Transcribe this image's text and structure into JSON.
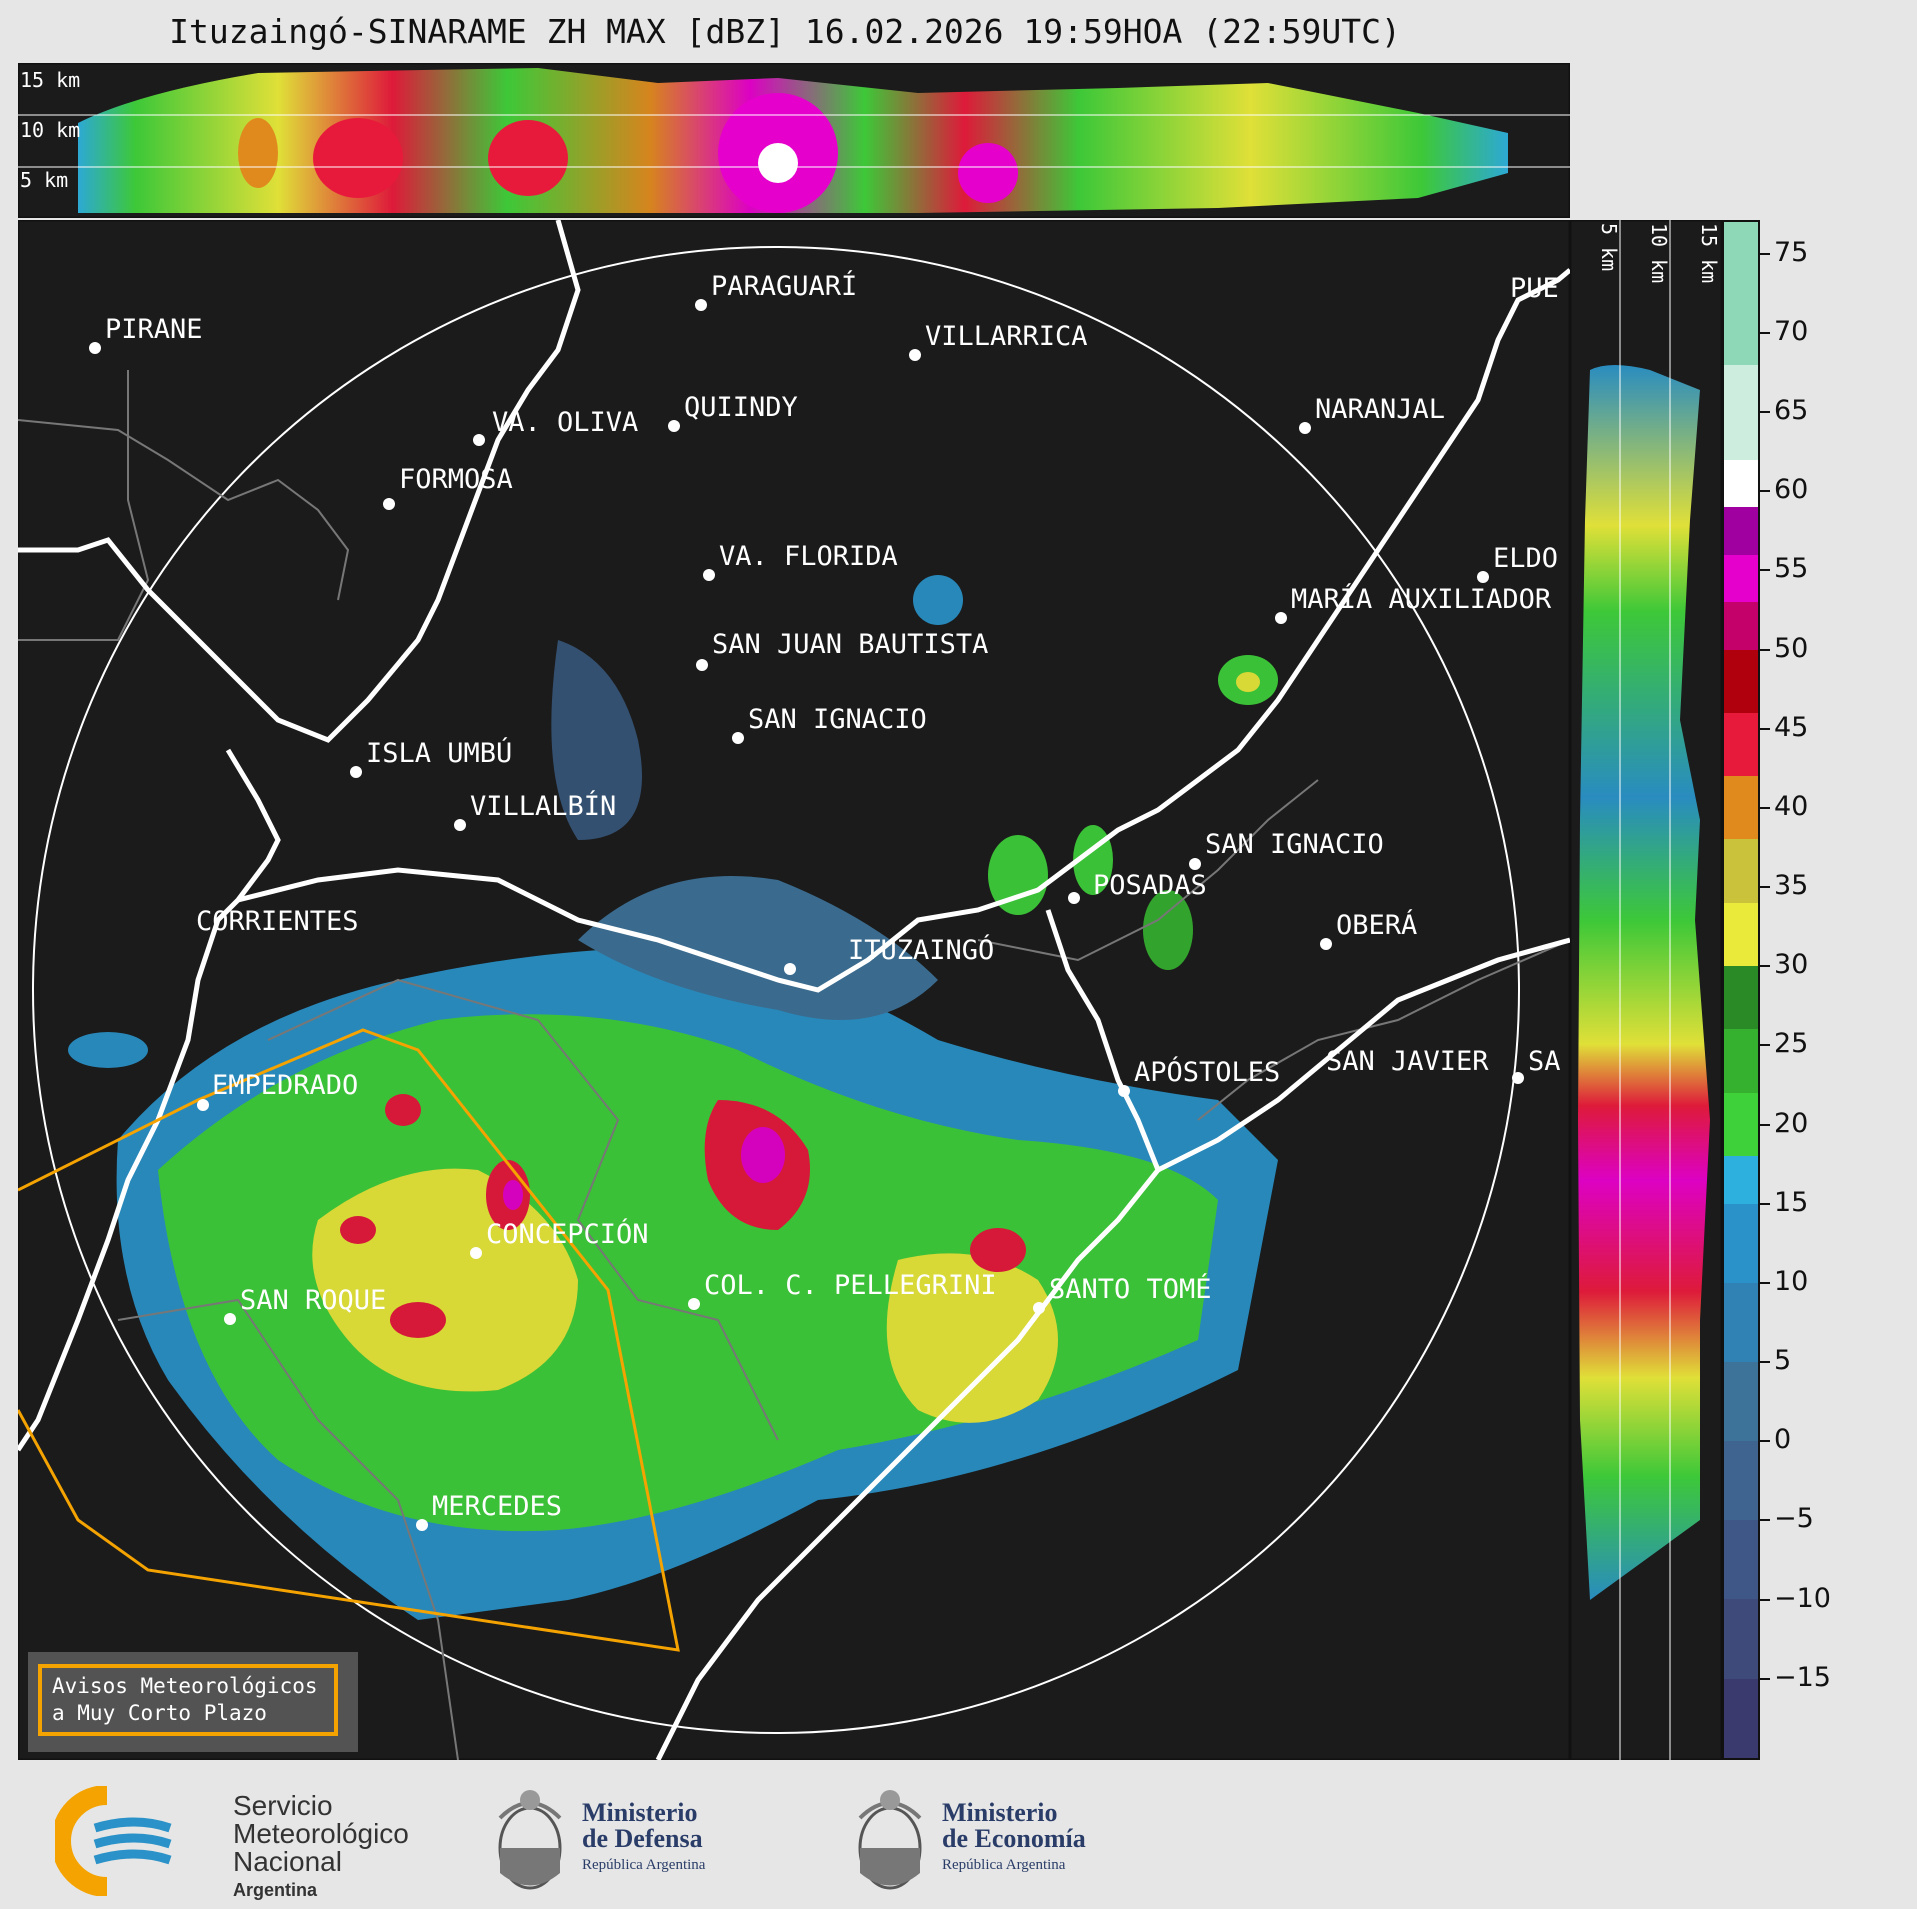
{
  "title": "Ituzaingó-SINARAME ZH MAX [dBZ] 16.02.2026 19:59HOA (22:59UTC)",
  "top_panel": {
    "height_labels": [
      "15 km",
      "10 km",
      "5 km"
    ]
  },
  "side_panel": {
    "height_labels": [
      "5 km",
      "10 km",
      "15 km"
    ]
  },
  "colorbar": {
    "unit": "dBZ",
    "ticks": [
      "75",
      "70",
      "65",
      "60",
      "55",
      "50",
      "45",
      "40",
      "35",
      "30",
      "25",
      "20",
      "15",
      "10",
      "5",
      "0",
      "−5",
      "−10",
      "−15"
    ],
    "range": [
      -20,
      77
    ],
    "stops": [
      {
        "from": -20,
        "to": -15,
        "color": "#3a3a6e"
      },
      {
        "from": -15,
        "to": -10,
        "color": "#3e4a7a"
      },
      {
        "from": -10,
        "to": -5,
        "color": "#3f5786"
      },
      {
        "from": -5,
        "to": 0,
        "color": "#3f6490"
      },
      {
        "from": 0,
        "to": 5,
        "color": "#3e7399"
      },
      {
        "from": 5,
        "to": 10,
        "color": "#2f82b3"
      },
      {
        "from": 10,
        "to": 15,
        "color": "#2a92c8"
      },
      {
        "from": 15,
        "to": 18,
        "color": "#2eb0de"
      },
      {
        "from": 18,
        "to": 22,
        "color": "#3fd13a"
      },
      {
        "from": 22,
        "to": 26,
        "color": "#35b12f"
      },
      {
        "from": 26,
        "to": 30,
        "color": "#2a8a26"
      },
      {
        "from": 30,
        "to": 34,
        "color": "#eaea3a"
      },
      {
        "from": 34,
        "to": 38,
        "color": "#c9c23a"
      },
      {
        "from": 38,
        "to": 42,
        "color": "#e08a1e"
      },
      {
        "from": 42,
        "to": 46,
        "color": "#e81a3c"
      },
      {
        "from": 46,
        "to": 50,
        "color": "#b0000e"
      },
      {
        "from": 50,
        "to": 53,
        "color": "#c4006a"
      },
      {
        "from": 53,
        "to": 56,
        "color": "#e600cc"
      },
      {
        "from": 56,
        "to": 59,
        "color": "#a000a0"
      },
      {
        "from": 59,
        "to": 62,
        "color": "#ffffff"
      },
      {
        "from": 62,
        "to": 68,
        "color": "#cdeede"
      },
      {
        "from": 68,
        "to": 77,
        "color": "#8ed8b8"
      }
    ]
  },
  "cities": [
    {
      "name": "PIRANE"
    },
    {
      "name": "PARAGUARÍ"
    },
    {
      "name": "VILLARRICA"
    },
    {
      "name": "PUE"
    },
    {
      "name": "VA. OLIVA"
    },
    {
      "name": "QUIINDY"
    },
    {
      "name": "NARANJAL"
    },
    {
      "name": "FORMOSA"
    },
    {
      "name": "VA. FLORIDA"
    },
    {
      "name": "ELDO"
    },
    {
      "name": "MARÍA AUXILIADOR"
    },
    {
      "name": "SAN JUAN BAUTISTA"
    },
    {
      "name": "SAN IGNACIO"
    },
    {
      "name": "ISLA UMBÚ"
    },
    {
      "name": "VILLALBÍN"
    },
    {
      "name": "SAN IGNACIO"
    },
    {
      "name": "POSADAS"
    },
    {
      "name": "CORRIENTES"
    },
    {
      "name": "ITUZAINGÓ"
    },
    {
      "name": "OBERÁ"
    },
    {
      "name": "EMPEDRADO"
    },
    {
      "name": "APÓSTOLES"
    },
    {
      "name": "SAN JAVIER"
    },
    {
      "name": "SA"
    },
    {
      "name": "CONCEPCIÓN"
    },
    {
      "name": "SAN ROQUE"
    },
    {
      "name": "COL. C. PELLEGRINI"
    },
    {
      "name": "SANTO TOMÉ"
    },
    {
      "name": "MERCEDES"
    }
  ],
  "warning_box": {
    "line1": "Avisos Meteorológicos",
    "line2": "a Muy Corto Plazo"
  },
  "logos": {
    "smn": {
      "line1": "Servicio",
      "line2": "Meteorológico",
      "line3": "Nacional",
      "line4": "Argentina"
    },
    "defensa": {
      "line1": "Ministerio",
      "line2": "de Defensa",
      "line3": "República Argentina"
    },
    "economia": {
      "line1": "Ministerio",
      "line2": "de Economía",
      "line3": "República Argentina"
    }
  }
}
